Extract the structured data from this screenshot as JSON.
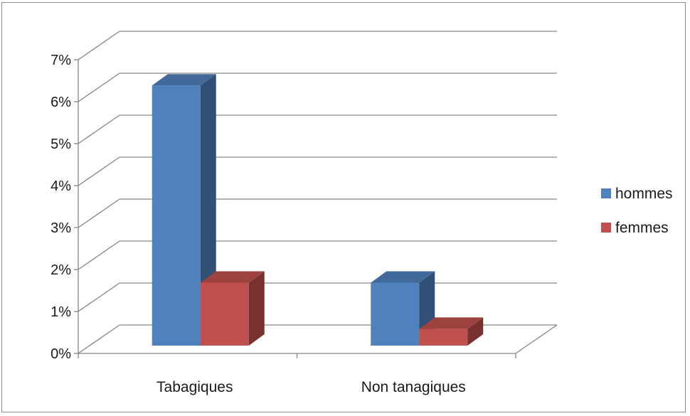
{
  "chart_data": {
    "type": "bar",
    "categories": [
      "Tabagiques",
      "Non tanagiques"
    ],
    "series": [
      {
        "name": "hommes",
        "values": [
          6.2,
          1.5
        ],
        "color": "#4f81bd"
      },
      {
        "name": "femmes",
        "values": [
          1.5,
          0.4
        ],
        "color": "#c0504d"
      }
    ],
    "y_ticks": [
      "0%",
      "1%",
      "2%",
      "3%",
      "4%",
      "5%",
      "6%",
      "7%"
    ],
    "ylim": [
      0,
      7
    ],
    "grid": true,
    "legend_position": "right",
    "style": "3d-clustered-column"
  }
}
